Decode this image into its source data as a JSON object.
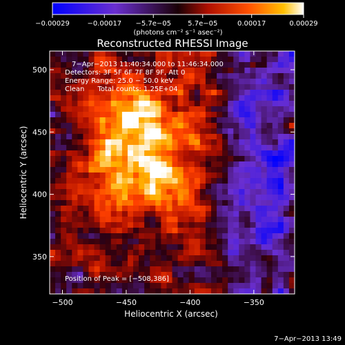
{
  "chart_data": {
    "type": "heatmap",
    "title": "Reconstructed RHESSI Image",
    "xlabel": "Heliocentric X (arcsec)",
    "ylabel": "Heliocentric Y (arcsec)",
    "xlim": [
      -510,
      -318
    ],
    "ylim": [
      320,
      515
    ],
    "x_ticks": [
      {
        "value": -500,
        "label": "−500"
      },
      {
        "value": -450,
        "label": "−450"
      },
      {
        "value": -400,
        "label": "−400"
      },
      {
        "value": -350,
        "label": "−350"
      }
    ],
    "y_ticks": [
      {
        "value": 350,
        "label": "350"
      },
      {
        "value": 400,
        "label": "400"
      },
      {
        "value": 450,
        "label": "450"
      },
      {
        "value": 500,
        "label": "500"
      }
    ],
    "colorbar": {
      "range": [
        -0.00029,
        0.00029
      ],
      "ticks": [
        {
          "value": -0.00029,
          "label": "−0.00029"
        },
        {
          "value": -0.00017,
          "label": "−0.00017"
        },
        {
          "value": -5.7e-05,
          "label": "−5.7e−05"
        },
        {
          "value": 5.7e-05,
          "label": "5.7e−05"
        },
        {
          "value": 0.00017,
          "label": "0.00017"
        },
        {
          "value": 0.00029,
          "label": "0.00029"
        }
      ],
      "units": "(photons cm⁻² s⁻¹ asec⁻²)"
    },
    "annotations": [
      "7−Apr−2013 11:40:34.000 to 11:46:34.000",
      "Detectors: 3F 5F 6F 7F 8F 9F, Att 0",
      "Energy Range: 25.0 − 50.0 keV",
      "Clean      Total counts: 1.25E+04"
    ],
    "peak_label": "Position of Peak = [−508,386]",
    "peak": [
      -508,
      386
    ],
    "grid": false,
    "legend": "none"
  },
  "footer": {
    "timestamp": "7−Apr−2013 13:49"
  },
  "colors": {
    "background": "#000000",
    "text": "#ffffff",
    "colormap": [
      "#0000ff",
      "#6a2fd0",
      "#2a0010",
      "#b01000",
      "#ff4000",
      "#ffb000",
      "#ffffff"
    ]
  }
}
